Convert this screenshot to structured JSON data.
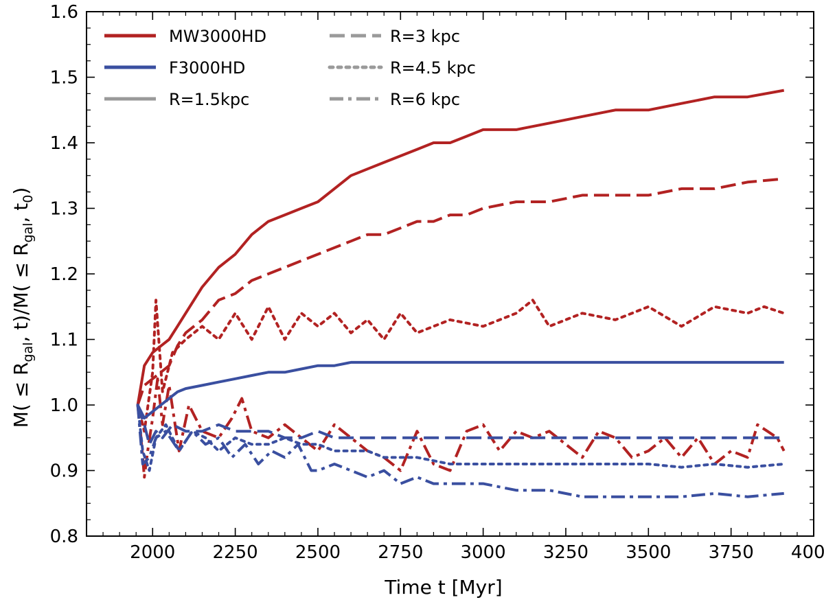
{
  "chart_data": {
    "type": "line",
    "xlabel": "Time t [Myr]",
    "ylabel": {
      "prefix": "M( ≤ R",
      "sub1": "gal",
      "mid1": ", t)/M( ≤ R",
      "sub2": "gal",
      "mid2": ", t",
      "sub3": "0",
      "suffix": ")"
    },
    "xlim": [
      1800,
      4000
    ],
    "ylim": [
      0.8,
      1.6
    ],
    "xticks": [
      2000,
      2250,
      2500,
      2750,
      3000,
      3250,
      3500,
      3750,
      4000
    ],
    "yticks": [
      0.8,
      0.9,
      1.0,
      1.1,
      1.2,
      1.3,
      1.4,
      1.5,
      1.6
    ],
    "legend": {
      "location": "top-left",
      "entries": [
        {
          "label": "MW3000HD",
          "color": "#b22222",
          "style": "solid"
        },
        {
          "label": "F3000HD",
          "color": "#3a4fa0",
          "style": "solid"
        },
        {
          "label": "R=1.5kpc",
          "color": "#9a9a9a",
          "style": "solid"
        },
        {
          "label": "R=3 kpc",
          "color": "#9a9a9a",
          "style": "dashed"
        },
        {
          "label": "R=4.5 kpc",
          "color": "#9a9a9a",
          "style": "dotted"
        },
        {
          "label": "R=6 kpc",
          "color": "#9a9a9a",
          "style": "dashdot"
        }
      ]
    },
    "series": [
      {
        "name": "MW3000HD R=1.5kpc",
        "model": "MW3000HD",
        "radius": "R=1.5kpc",
        "color": "#b22222",
        "style": "solid",
        "x": [
          1955,
          1975,
          2000,
          2025,
          2050,
          2075,
          2100,
          2150,
          2200,
          2250,
          2300,
          2350,
          2400,
          2450,
          2500,
          2550,
          2600,
          2650,
          2700,
          2750,
          2800,
          2850,
          2900,
          2950,
          3000,
          3100,
          3200,
          3300,
          3400,
          3500,
          3600,
          3700,
          3800,
          3910
        ],
        "y": [
          1.0,
          1.06,
          1.08,
          1.09,
          1.1,
          1.12,
          1.14,
          1.18,
          1.21,
          1.23,
          1.26,
          1.28,
          1.29,
          1.3,
          1.31,
          1.33,
          1.35,
          1.36,
          1.37,
          1.38,
          1.39,
          1.4,
          1.4,
          1.41,
          1.42,
          1.42,
          1.43,
          1.44,
          1.45,
          1.45,
          1.46,
          1.47,
          1.47,
          1.48
        ]
      },
      {
        "name": "MW3000HD R=3 kpc",
        "model": "MW3000HD",
        "radius": "R=3 kpc",
        "color": "#b22222",
        "style": "dashed",
        "x": [
          1955,
          1975,
          2000,
          2025,
          2050,
          2075,
          2100,
          2150,
          2200,
          2250,
          2300,
          2350,
          2400,
          2450,
          2500,
          2550,
          2600,
          2650,
          2700,
          2750,
          2800,
          2850,
          2900,
          2950,
          3000,
          3100,
          3200,
          3300,
          3400,
          3500,
          3600,
          3700,
          3800,
          3910
        ],
        "y": [
          1.0,
          1.03,
          1.04,
          1.05,
          1.06,
          1.09,
          1.11,
          1.13,
          1.16,
          1.17,
          1.19,
          1.2,
          1.21,
          1.22,
          1.23,
          1.24,
          1.25,
          1.26,
          1.26,
          1.27,
          1.28,
          1.28,
          1.29,
          1.29,
          1.3,
          1.31,
          1.31,
          1.32,
          1.32,
          1.32,
          1.33,
          1.33,
          1.34,
          1.345
        ]
      },
      {
        "name": "MW3000HD R=4.5 kpc",
        "model": "MW3000HD",
        "radius": "R=4.5 kpc",
        "color": "#b22222",
        "style": "dotted",
        "x": [
          1955,
          1975,
          2000,
          2010,
          2030,
          2060,
          2100,
          2150,
          2200,
          2250,
          2300,
          2350,
          2400,
          2450,
          2500,
          2550,
          2600,
          2650,
          2700,
          2750,
          2800,
          2900,
          3000,
          3100,
          3150,
          3200,
          3300,
          3400,
          3500,
          3600,
          3700,
          3800,
          3850,
          3910
        ],
        "y": [
          1.0,
          0.96,
          1.05,
          1.16,
          1.02,
          1.08,
          1.1,
          1.12,
          1.1,
          1.14,
          1.1,
          1.15,
          1.1,
          1.14,
          1.12,
          1.14,
          1.11,
          1.13,
          1.1,
          1.14,
          1.11,
          1.13,
          1.12,
          1.14,
          1.16,
          1.12,
          1.14,
          1.13,
          1.15,
          1.12,
          1.15,
          1.14,
          1.15,
          1.14
        ]
      },
      {
        "name": "MW3000HD R=6 kpc",
        "model": "MW3000HD",
        "radius": "R=6 kpc",
        "color": "#b22222",
        "style": "dashdot",
        "x": [
          1955,
          1965,
          1975,
          1985,
          2000,
          2015,
          2030,
          2050,
          2080,
          2110,
          2150,
          2200,
          2240,
          2270,
          2300,
          2350,
          2400,
          2450,
          2500,
          2550,
          2600,
          2650,
          2700,
          2750,
          2800,
          2850,
          2900,
          2950,
          3000,
          3050,
          3100,
          3150,
          3200,
          3250,
          3300,
          3350,
          3400,
          3450,
          3500,
          3550,
          3600,
          3650,
          3700,
          3750,
          3800,
          3830,
          3860,
          3890,
          3910
        ],
        "y": [
          1.0,
          0.95,
          0.89,
          0.93,
          0.98,
          1.04,
          0.97,
          1.03,
          0.93,
          1.0,
          0.96,
          0.95,
          0.98,
          1.01,
          0.96,
          0.95,
          0.97,
          0.95,
          0.93,
          0.97,
          0.95,
          0.93,
          0.92,
          0.9,
          0.96,
          0.91,
          0.9,
          0.96,
          0.97,
          0.93,
          0.96,
          0.95,
          0.96,
          0.94,
          0.92,
          0.96,
          0.95,
          0.92,
          0.93,
          0.95,
          0.92,
          0.95,
          0.91,
          0.93,
          0.92,
          0.97,
          0.96,
          0.95,
          0.93
        ]
      },
      {
        "name": "F3000HD R=1.5kpc",
        "model": "F3000HD",
        "radius": "R=1.5kpc",
        "color": "#3a4fa0",
        "style": "solid",
        "x": [
          1955,
          1975,
          2000,
          2025,
          2050,
          2075,
          2100,
          2150,
          2200,
          2250,
          2300,
          2350,
          2400,
          2450,
          2500,
          2550,
          2600,
          2650,
          2700,
          2800,
          2900,
          3000,
          3100,
          3200,
          3300,
          3400,
          3500,
          3600,
          3700,
          3800,
          3910
        ],
        "y": [
          1.0,
          0.98,
          0.99,
          1.0,
          1.01,
          1.02,
          1.025,
          1.03,
          1.035,
          1.04,
          1.045,
          1.05,
          1.05,
          1.055,
          1.06,
          1.06,
          1.065,
          1.065,
          1.065,
          1.065,
          1.065,
          1.065,
          1.065,
          1.065,
          1.065,
          1.065,
          1.065,
          1.065,
          1.065,
          1.065,
          1.065
        ]
      },
      {
        "name": "F3000HD R=3 kpc",
        "model": "F3000HD",
        "radius": "R=3 kpc",
        "color": "#3a4fa0",
        "style": "dashed",
        "x": [
          1955,
          1975,
          1990,
          2010,
          2030,
          2060,
          2100,
          2150,
          2200,
          2250,
          2300,
          2350,
          2400,
          2450,
          2500,
          2550,
          2600,
          2650,
          2700,
          2800,
          2900,
          3000,
          3100,
          3200,
          3300,
          3400,
          3500,
          3600,
          3700,
          3800,
          3910
        ],
        "y": [
          1.0,
          0.97,
          0.94,
          0.96,
          0.95,
          0.97,
          0.96,
          0.96,
          0.97,
          0.96,
          0.96,
          0.96,
          0.95,
          0.95,
          0.96,
          0.95,
          0.95,
          0.95,
          0.95,
          0.95,
          0.95,
          0.95,
          0.95,
          0.95,
          0.95,
          0.95,
          0.95,
          0.95,
          0.95,
          0.95,
          0.95
        ]
      },
      {
        "name": "F3000HD R=4.5 kpc",
        "model": "F3000HD",
        "radius": "R=4.5 kpc",
        "color": "#3a4fa0",
        "style": "dotted",
        "x": [
          1955,
          1970,
          1990,
          2010,
          2040,
          2080,
          2120,
          2160,
          2200,
          2250,
          2300,
          2350,
          2400,
          2450,
          2500,
          2550,
          2600,
          2650,
          2700,
          2800,
          2900,
          3000,
          3100,
          3200,
          3300,
          3400,
          3500,
          3600,
          3700,
          3800,
          3910
        ],
        "y": [
          1.0,
          0.93,
          0.9,
          0.95,
          0.97,
          0.93,
          0.96,
          0.95,
          0.93,
          0.95,
          0.94,
          0.94,
          0.95,
          0.94,
          0.94,
          0.93,
          0.93,
          0.93,
          0.92,
          0.92,
          0.91,
          0.91,
          0.91,
          0.91,
          0.91,
          0.91,
          0.91,
          0.905,
          0.91,
          0.905,
          0.91
        ]
      },
      {
        "name": "F3000HD R=6 kpc",
        "model": "F3000HD",
        "radius": "R=6 kpc",
        "color": "#3a4fa0",
        "style": "dashdot",
        "x": [
          1955,
          1970,
          1990,
          2010,
          2040,
          2080,
          2120,
          2160,
          2200,
          2240,
          2280,
          2320,
          2360,
          2400,
          2440,
          2480,
          2500,
          2550,
          2600,
          2650,
          2700,
          2750,
          2800,
          2850,
          2900,
          2950,
          3000,
          3100,
          3200,
          3300,
          3400,
          3500,
          3600,
          3700,
          3800,
          3910
        ],
        "y": [
          1.0,
          0.91,
          0.92,
          0.95,
          0.96,
          0.93,
          0.96,
          0.94,
          0.95,
          0.92,
          0.94,
          0.91,
          0.93,
          0.92,
          0.94,
          0.9,
          0.9,
          0.91,
          0.9,
          0.89,
          0.9,
          0.88,
          0.89,
          0.88,
          0.88,
          0.88,
          0.88,
          0.87,
          0.87,
          0.86,
          0.86,
          0.86,
          0.86,
          0.865,
          0.86,
          0.865
        ]
      }
    ]
  }
}
